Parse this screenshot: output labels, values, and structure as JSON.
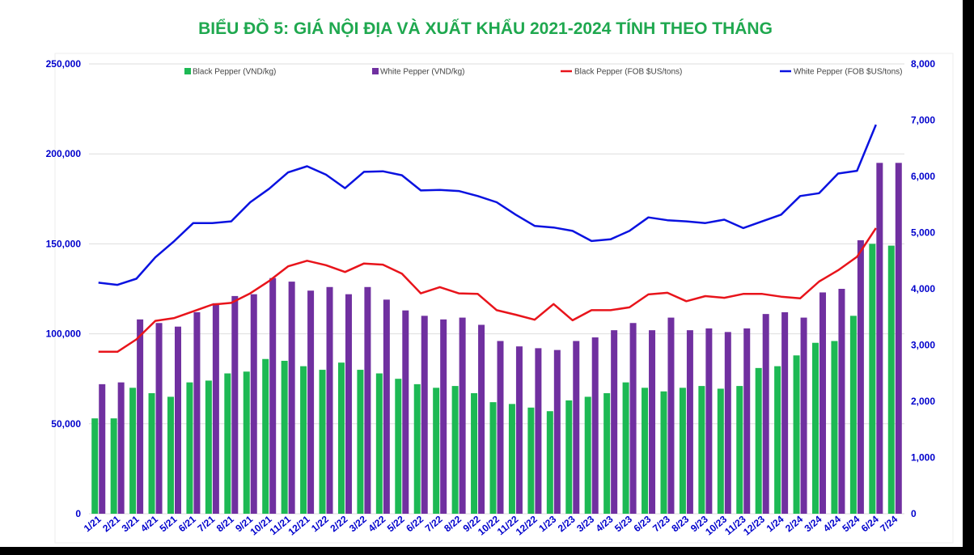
{
  "title": "BIỂU ĐỒ 5: GIÁ NỘI ĐỊA VÀ XUẤT KHẨU 2021-2024 TÍNH THEO THÁNG",
  "colors": {
    "title": "#1fa84f",
    "axis_text": "#0000cc",
    "black_pepper_bar": "#1db954",
    "white_pepper_bar": "#7030a0",
    "black_fob_line": "#e8141b",
    "white_fob_line": "#0a12e0",
    "grid": "#dddddd"
  },
  "chart_data": {
    "type": "bar",
    "categories": [
      "1/21",
      "2/21",
      "3/21",
      "4/21",
      "5/21",
      "6/21",
      "7/21",
      "8/21",
      "9/21",
      "10/21",
      "11/21",
      "12/21",
      "1/22",
      "2/22",
      "3/22",
      "4/22",
      "5/22",
      "6/22",
      "7/22",
      "8/22",
      "9/22",
      "10/22",
      "11/22",
      "12/22",
      "1/23",
      "2/23",
      "3/23",
      "4/23",
      "5/23",
      "6/23",
      "7/23",
      "8/23",
      "9/23",
      "10/23",
      "11/23",
      "12/23",
      "1/24",
      "2/24",
      "3/24",
      "4/24",
      "5/24",
      "6/24",
      "7/24"
    ],
    "left_axis": {
      "ylim": [
        0,
        250000
      ],
      "ticks": [
        "0",
        "50,000",
        "100,000",
        "150,000",
        "200,000",
        "250,000"
      ],
      "tick_values": [
        0,
        50000,
        100000,
        150000,
        200000,
        250000
      ]
    },
    "right_axis": {
      "ylim": [
        0,
        8000
      ],
      "ticks": [
        "0",
        "1,000",
        "2,000",
        "3,000",
        "4,000",
        "5,000",
        "6,000",
        "7,000",
        "8,000"
      ],
      "tick_values": [
        0,
        1000,
        2000,
        3000,
        4000,
        5000,
        6000,
        7000,
        8000
      ]
    },
    "grid": true,
    "legend_position": "top",
    "series": [
      {
        "name": "Black Pepper (VND/kg)",
        "kind": "bar",
        "axis": "left",
        "values": [
          53000,
          53000,
          70000,
          67000,
          65000,
          73000,
          74000,
          78000,
          79000,
          86000,
          85000,
          82000,
          80000,
          84000,
          80000,
          78000,
          75000,
          72000,
          70000,
          71000,
          67000,
          62000,
          61000,
          59000,
          57000,
          63000,
          65000,
          67000,
          73000,
          70000,
          68000,
          70000,
          71000,
          69500,
          71000,
          81000,
          82000,
          88000,
          95000,
          96000,
          110000,
          150000,
          149000
        ]
      },
      {
        "name": "White Pepper (VND/kg)",
        "kind": "bar",
        "axis": "left",
        "values": [
          72000,
          73000,
          108000,
          106000,
          104000,
          112000,
          117000,
          121000,
          122000,
          131000,
          129000,
          124000,
          126000,
          122000,
          126000,
          119000,
          113000,
          110000,
          108000,
          109000,
          105000,
          96000,
          93000,
          92000,
          91000,
          96000,
          98000,
          102000,
          106000,
          102000,
          109000,
          102000,
          103000,
          101000,
          103000,
          111000,
          112000,
          109000,
          123000,
          125000,
          152000,
          195000,
          195000
        ]
      },
      {
        "name": "Black Pepper (FOB $US/tons)",
        "kind": "line",
        "axis": "right",
        "values": [
          2880,
          2880,
          3100,
          3430,
          3480,
          3600,
          3720,
          3750,
          3920,
          4140,
          4400,
          4500,
          4420,
          4300,
          4450,
          4430,
          4270,
          3920,
          4030,
          3920,
          3910,
          3620,
          3540,
          3450,
          3730,
          3440,
          3620,
          3620,
          3670,
          3900,
          3930,
          3780,
          3870,
          3840,
          3910,
          3910,
          3860,
          3830,
          4130,
          4330,
          4570,
          5080,
          null
        ]
      },
      {
        "name": "White Pepper (FOB $US/tons)",
        "kind": "line",
        "axis": "right",
        "values": [
          4110,
          4070,
          4180,
          4560,
          4850,
          5170,
          5170,
          5200,
          5540,
          5780,
          6070,
          6180,
          6030,
          5790,
          6080,
          6090,
          6020,
          5750,
          5760,
          5740,
          5650,
          5540,
          5320,
          5120,
          5090,
          5030,
          4850,
          4880,
          5030,
          5270,
          5220,
          5200,
          5170,
          5230,
          5080,
          5200,
          5320,
          5650,
          5700,
          6050,
          6100,
          6920,
          null
        ]
      }
    ]
  }
}
